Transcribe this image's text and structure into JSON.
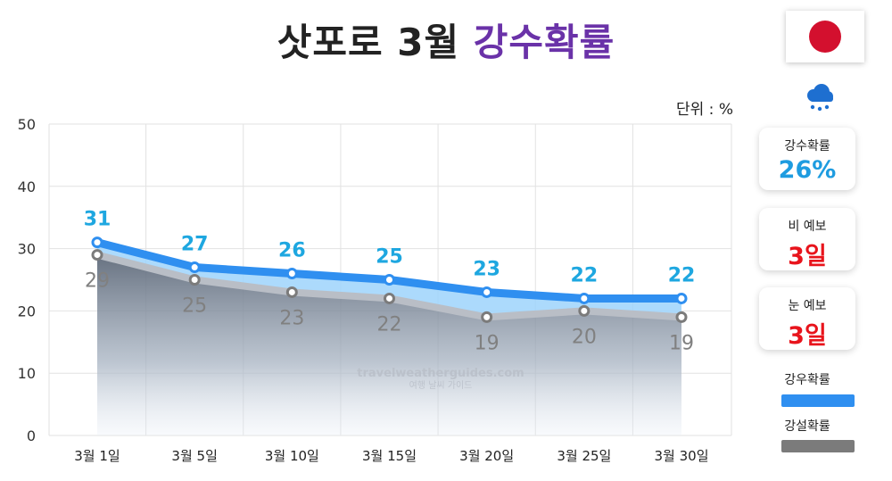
{
  "header": {
    "title_main": "삿포로 3월",
    "title_accent": "강수확률"
  },
  "unit_label": "단위 : %",
  "icons": {
    "flag": "japan-flag-icon",
    "weather": "rain-cloud-icon"
  },
  "cards": [
    {
      "label": "강수확률",
      "value": "26%",
      "color": "#1e9ce0"
    },
    {
      "label": "비 예보",
      "value": "3일",
      "color": "#e8141c"
    },
    {
      "label": "눈 예보",
      "value": "3일",
      "color": "#e8141c"
    }
  ],
  "legend": [
    {
      "label": "강우확률",
      "color": "#2f8ff0"
    },
    {
      "label": "강설확률",
      "color": "#7b7b7b"
    }
  ],
  "watermark": {
    "line1": "travelweatherguides.com",
    "line2": "여행 날씨 가이드"
  },
  "chart_data": {
    "type": "line",
    "categories": [
      "3월 1일",
      "3월 5일",
      "3월 10일",
      "3월 15일",
      "3월 20일",
      "3월 25일",
      "3월 30일"
    ],
    "series": [
      {
        "name": "강우확률",
        "values": [
          31,
          27,
          26,
          25,
          23,
          22,
          22
        ],
        "color": "#2f8ff0",
        "label_color": "#1ea7e0"
      },
      {
        "name": "강설확률",
        "values": [
          29,
          25,
          23,
          22,
          19,
          20,
          19
        ],
        "color": "#7b7b7b",
        "label_color": "#808080"
      }
    ],
    "ylim": [
      0,
      50
    ],
    "yticks": [
      0,
      10,
      20,
      30,
      40,
      50
    ],
    "grid": true
  }
}
